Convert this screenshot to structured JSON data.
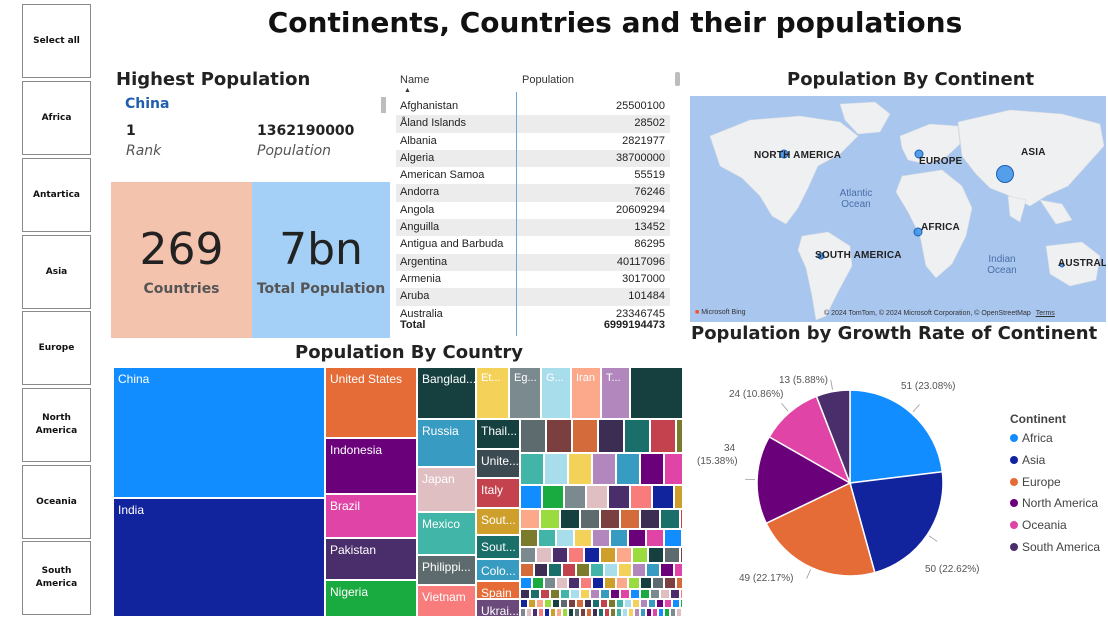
{
  "title": "Continents, Countries and their populations",
  "slicer": {
    "items": [
      "Select all",
      "Africa",
      "Antartica",
      "Asia",
      "Europe",
      "North America",
      "Oceania",
      "South America"
    ]
  },
  "highest": {
    "title": "Highest Population",
    "country": "China",
    "rank_value": "1",
    "rank_label": "Rank",
    "population_value": "1362190000",
    "population_label": "Population"
  },
  "kpi": {
    "countries_value": "269",
    "countries_label": "Countries",
    "total_value": "7bn",
    "total_label": "Total Population",
    "colors": {
      "countries": "#f4c3ae",
      "total": "#a4cff6"
    }
  },
  "table": {
    "headers": {
      "name": "Name",
      "population": "Population"
    },
    "rows": [
      {
        "name": "Afghanistan",
        "population": "25500100"
      },
      {
        "name": "Åland Islands",
        "population": "28502"
      },
      {
        "name": "Albania",
        "population": "2821977"
      },
      {
        "name": "Algeria",
        "population": "38700000"
      },
      {
        "name": "American Samoa",
        "population": "55519"
      },
      {
        "name": "Andorra",
        "population": "76246"
      },
      {
        "name": "Angola",
        "population": "20609294"
      },
      {
        "name": "Anguilla",
        "population": "13452"
      },
      {
        "name": "Antigua and Barbuda",
        "population": "86295"
      },
      {
        "name": "Argentina",
        "population": "40117096"
      },
      {
        "name": "Armenia",
        "population": "3017000"
      },
      {
        "name": "Aruba",
        "population": "101484"
      },
      {
        "name": "Australia",
        "population": "23346745"
      }
    ],
    "total_label": "Total",
    "total_value": "6999194473"
  },
  "map": {
    "title": "Population By Continent",
    "labels": [
      "NORTH AMERICA",
      "EUROPE",
      "ASIA",
      "AFRICA",
      "SOUTH AMERICA",
      "AUSTRALI"
    ],
    "oceans": [
      "Atlantic Ocean",
      "Indian Ocean"
    ],
    "logo": "Microsoft Bing",
    "attribution": "© 2024 TomTom, © 2024 Microsoft Corporation, © OpenStreetMap",
    "terms": "Terms",
    "colors": {
      "water": "#a9c6ef",
      "land": "#eef0f2",
      "bubble": "#3a8fe8"
    }
  },
  "treemap": {
    "title": "Population By Country",
    "labels": [
      "China",
      "India",
      "United States",
      "Indonesia",
      "Brazil",
      "Pakistan",
      "Nigeria",
      "Banglad...",
      "Russia",
      "Japan",
      "Mexico",
      "Philippi...",
      "Vietnam",
      "Et...",
      "Eg...",
      "G...",
      "Iran",
      "T...",
      "Thail...",
      "Unite...",
      "Italy",
      "Sout...",
      "Sout...",
      "Colo...",
      "Spain",
      "Ukrai..."
    ]
  },
  "pie": {
    "title": "Population by Growth Rate of Continent",
    "legend_title": "Continent",
    "labels": [
      "51 (23.08%)",
      "50 (22.62%)",
      "49 (22.17%)",
      "34",
      "(15.38%)",
      "24 (10.86%)",
      "13 (5.88%)"
    ]
  },
  "chart_data": {
    "type": "pie",
    "title": "Population by Growth Rate of Continent",
    "legend_title": "Continent",
    "legend_position": "right",
    "categories": [
      "Africa",
      "Asia",
      "Europe",
      "North America",
      "Oceania",
      "South America"
    ],
    "values": [
      51,
      50,
      49,
      34,
      24,
      13
    ],
    "percentages": [
      23.08,
      22.62,
      22.17,
      15.38,
      10.86,
      5.88
    ],
    "colors": [
      "#118dff",
      "#12239e",
      "#e66c37",
      "#6b007b",
      "#e044a7",
      "#4a2e6b"
    ]
  }
}
